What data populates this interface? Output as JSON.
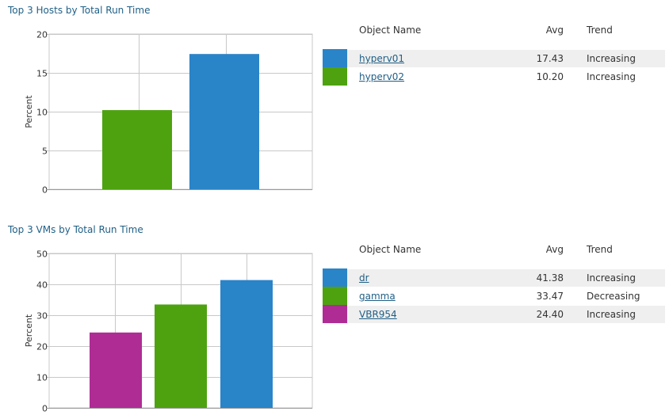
{
  "colors": {
    "blue": "#2a84c8",
    "green": "#4ea210",
    "magenta": "#b02c95",
    "grid": "#c8c8c8",
    "row_shade": "#efefef",
    "link": "#1f5f86"
  },
  "table_headers": {
    "name": "Object Name",
    "avg": "Avg",
    "trend": "Trend"
  },
  "hosts": {
    "title": "Top 3 Hosts by Total Run Time",
    "rows": [
      {
        "name": "hyperv01",
        "avg": "17.43",
        "trend": "Increasing",
        "color": "#2a84c8"
      },
      {
        "name": "hyperv02",
        "avg": "10.20",
        "trend": "Increasing",
        "color": "#4ea210"
      }
    ]
  },
  "vms": {
    "title": "Top 3 VMs by Total Run Time",
    "rows": [
      {
        "name": "dr",
        "avg": "41.38",
        "trend": "Increasing",
        "color": "#2a84c8"
      },
      {
        "name": "gamma",
        "avg": "33.47",
        "trend": "Decreasing",
        "color": "#4ea210"
      },
      {
        "name": "VBR954",
        "avg": "24.40",
        "trend": "Increasing",
        "color": "#b02c95"
      }
    ]
  },
  "chart_data": [
    {
      "type": "bar",
      "title": "Top 3 Hosts by Total Run Time",
      "categories": [
        "hyperv02",
        "hyperv01"
      ],
      "values": [
        10.2,
        17.43
      ],
      "colors": [
        "#4ea210",
        "#2a84c8"
      ],
      "ylabel": "Percent",
      "ylim": [
        0,
        20
      ],
      "yticks": [
        0,
        5,
        10,
        15,
        20
      ],
      "grid": true
    },
    {
      "type": "bar",
      "title": "Top 3 VMs by Total Run Time",
      "categories": [
        "VBR954",
        "gamma",
        "dr"
      ],
      "values": [
        24.4,
        33.47,
        41.38
      ],
      "colors": [
        "#b02c95",
        "#4ea210",
        "#2a84c8"
      ],
      "ylabel": "Percent",
      "ylim": [
        0,
        50
      ],
      "yticks": [
        0,
        10,
        20,
        30,
        40,
        50
      ],
      "grid": true
    }
  ]
}
